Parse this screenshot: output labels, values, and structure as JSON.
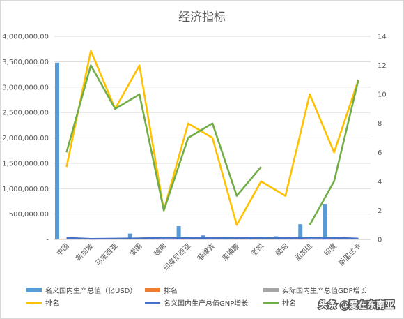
{
  "chart_data": {
    "type": "bar",
    "title": "经济指标",
    "categories": [
      "中国",
      "新加坡",
      "马来西亚",
      "泰国",
      "越南",
      "印度尼西亚",
      "菲律宾",
      "柬埔寨",
      "老挝",
      "缅甸",
      "孟加拉",
      "印度",
      "斯里兰卡"
    ],
    "y_left": {
      "min": 0,
      "max": 4000000,
      "step": 500000,
      "ticks": [
        "-",
        "500,000.00",
        "1,000,000.00",
        "1,500,000.00",
        "2,000,000.00",
        "2,500,000.00",
        "3,000,000.00",
        "3,500,000.00",
        "4,000,000.00"
      ]
    },
    "y_right": {
      "min": 0,
      "max": 14,
      "step": 2,
      "ticks": [
        "0",
        "2",
        "4",
        "6",
        "8",
        "10",
        "12",
        "14"
      ]
    },
    "series": [
      {
        "name": "名义国内生产总值（亿USD）",
        "type": "bar",
        "axis": "left",
        "color": "#5b9bd5",
        "values": [
          3480000,
          4000,
          10000,
          115000,
          30000,
          260000,
          80000,
          20000,
          15000,
          62000,
          300000,
          700000,
          18000
        ]
      },
      {
        "name": "排名",
        "type": "bar",
        "axis": "left",
        "color": "#ed7d31",
        "values": [
          4,
          9,
          5,
          3,
          2,
          4,
          6,
          6,
          8,
          7,
          10,
          12,
          1
        ]
      },
      {
        "name": "实际国内生产总值GDP增长",
        "type": "bar",
        "axis": "left",
        "color": "#a5a5a5",
        "values": [
          6,
          3,
          5,
          4,
          7,
          5,
          6,
          7,
          7,
          6,
          7,
          7,
          3
        ]
      },
      {
        "name": "排名",
        "type": "line",
        "axis": "right",
        "color": "#ffc000",
        "values": [
          5,
          13,
          9,
          12,
          2,
          8,
          7,
          1,
          4,
          3,
          10,
          6,
          11
        ]
      },
      {
        "name": "名义国内生产总值GNP增长",
        "type": "line",
        "axis": "left",
        "color": "#4472c4",
        "values": [
          30000,
          10000,
          15000,
          20000,
          35000,
          30000,
          25000,
          28000,
          30000,
          25000,
          35000,
          32000,
          15000
        ]
      },
      {
        "name": "排名",
        "type": "line",
        "axis": "right",
        "color": "#70ad47",
        "values": [
          6,
          12,
          9,
          10,
          2,
          7,
          8,
          3,
          5,
          null,
          1,
          4,
          11
        ]
      }
    ]
  },
  "watermark": "头条 @爱在东南亚"
}
